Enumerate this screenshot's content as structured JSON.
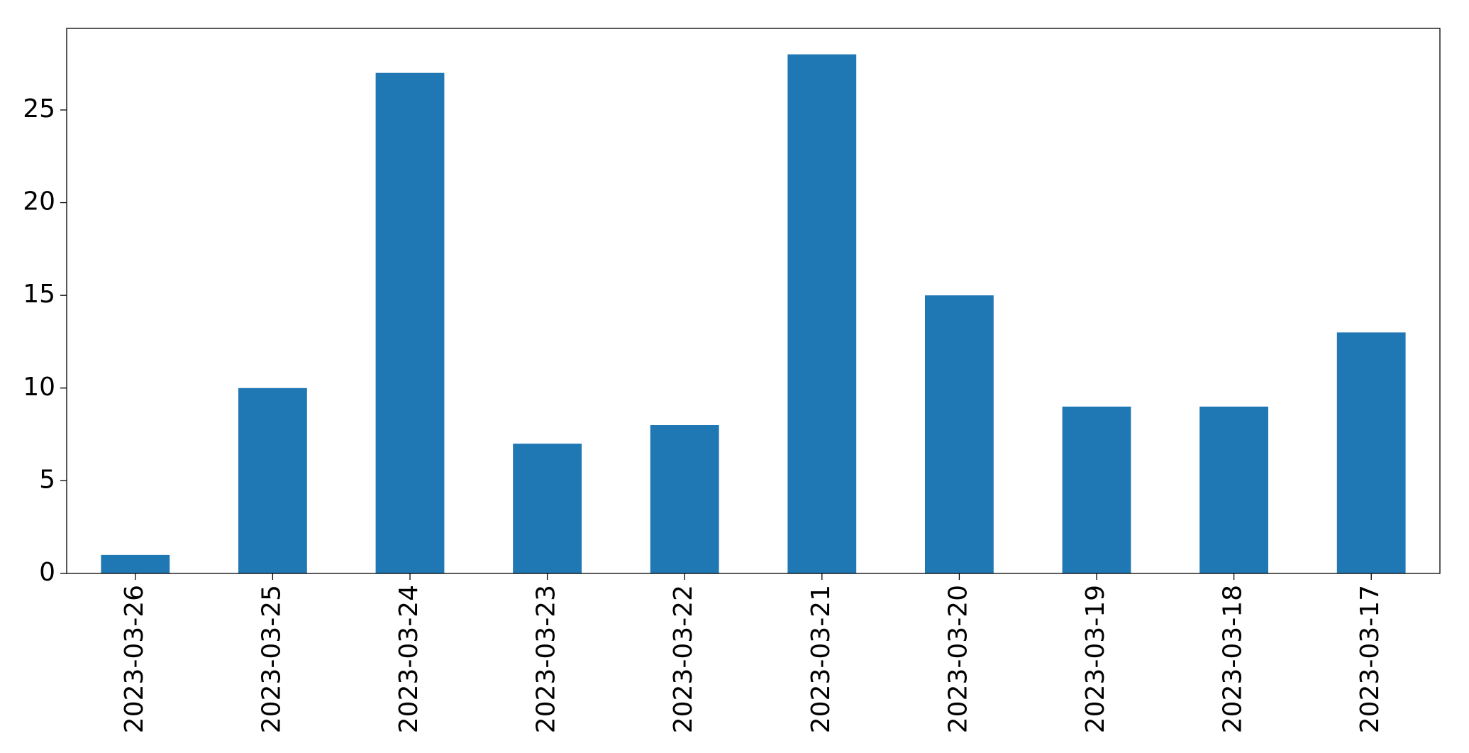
{
  "chart_data": {
    "type": "bar",
    "categories": [
      "2023-03-26",
      "2023-03-25",
      "2023-03-24",
      "2023-03-23",
      "2023-03-22",
      "2023-03-21",
      "2023-03-20",
      "2023-03-19",
      "2023-03-18",
      "2023-03-17"
    ],
    "values": [
      1,
      10,
      27,
      7,
      8,
      28,
      15,
      9,
      9,
      13
    ],
    "color": "#1f77b4",
    "ylim": [
      0,
      29.4
    ],
    "yticks": [
      0,
      5,
      10,
      15,
      20,
      25
    ],
    "grid": false
  }
}
